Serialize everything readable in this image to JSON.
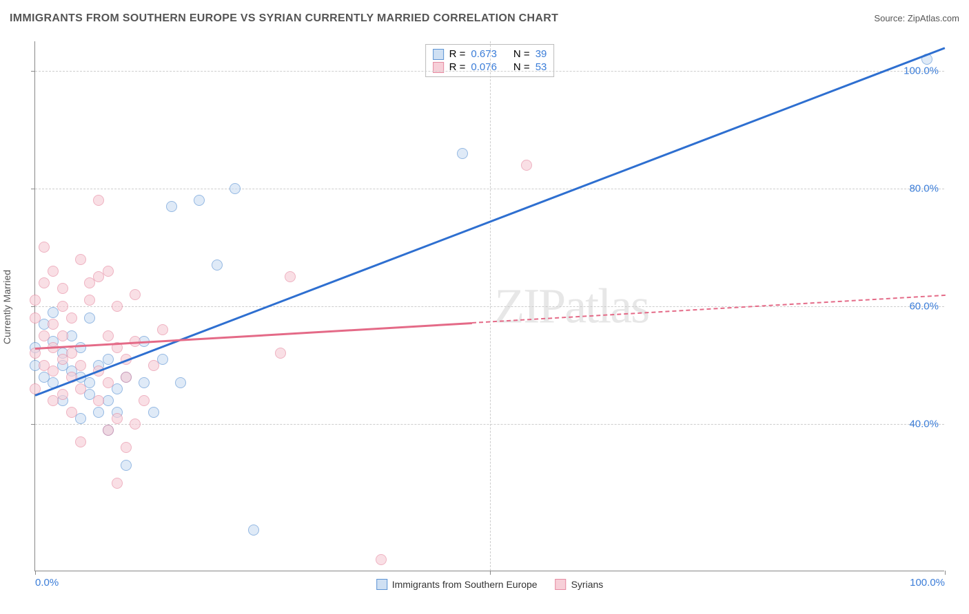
{
  "header": {
    "title": "IMMIGRANTS FROM SOUTHERN EUROPE VS SYRIAN CURRENTLY MARRIED CORRELATION CHART",
    "source_label": "Source:",
    "source_value": "ZipAtlas.com"
  },
  "watermark": "ZIPatlas",
  "chart": {
    "type": "scatter",
    "y_axis_title": "Currently Married",
    "background_color": "#ffffff",
    "grid_color": "#cccccc",
    "axis_color": "#888888",
    "tick_label_color": "#3b7dd8",
    "xlim": [
      0,
      100
    ],
    "ylim": [
      15,
      105
    ],
    "x_ticks": [
      {
        "v": 0,
        "label": "0.0%"
      },
      {
        "v": 50,
        "label": ""
      },
      {
        "v": 100,
        "label": "100.0%"
      }
    ],
    "y_ticks": [
      {
        "v": 40,
        "label": "40.0%"
      },
      {
        "v": 60,
        "label": "60.0%"
      },
      {
        "v": 80,
        "label": "80.0%"
      },
      {
        "v": 100,
        "label": "100.0%"
      }
    ],
    "marker_radius": 8,
    "marker_border_width": 1,
    "series": [
      {
        "id": "se",
        "label": "Immigrants from Southern Europe",
        "fill": "#cfe0f3",
        "border": "#5b93d4",
        "fill_opacity": 0.65,
        "R": "0.673",
        "N": "39",
        "trend": {
          "x1": 0,
          "y1": 45,
          "x2": 100,
          "y2": 104,
          "solid_until_x": 100,
          "color": "#2e6fd0",
          "width": 2.5
        },
        "points": [
          [
            0,
            50
          ],
          [
            0,
            53
          ],
          [
            1,
            48
          ],
          [
            1,
            57
          ],
          [
            2,
            47
          ],
          [
            2,
            54
          ],
          [
            2,
            59
          ],
          [
            3,
            44
          ],
          [
            3,
            50
          ],
          [
            3,
            52
          ],
          [
            4,
            49
          ],
          [
            4,
            55
          ],
          [
            5,
            41
          ],
          [
            5,
            48
          ],
          [
            5,
            53
          ],
          [
            6,
            47
          ],
          [
            6,
            45
          ],
          [
            6,
            58
          ],
          [
            7,
            42
          ],
          [
            7,
            50
          ],
          [
            8,
            39
          ],
          [
            8,
            44
          ],
          [
            8,
            51
          ],
          [
            9,
            42
          ],
          [
            9,
            46
          ],
          [
            10,
            48
          ],
          [
            10,
            33
          ],
          [
            12,
            47
          ],
          [
            12,
            54
          ],
          [
            13,
            42
          ],
          [
            14,
            51
          ],
          [
            15,
            77
          ],
          [
            16,
            47
          ],
          [
            18,
            78
          ],
          [
            20,
            67
          ],
          [
            22,
            80
          ],
          [
            24,
            22
          ],
          [
            47,
            86
          ],
          [
            98,
            102
          ]
        ]
      },
      {
        "id": "sy",
        "label": "Syrians",
        "fill": "#f7cfd8",
        "border": "#e68aa1",
        "fill_opacity": 0.65,
        "R": "0.076",
        "N": "53",
        "trend": {
          "x1": 0,
          "y1": 53,
          "x2": 100,
          "y2": 62,
          "solid_until_x": 48,
          "color": "#e46a87",
          "width": 2.5
        },
        "points": [
          [
            0,
            46
          ],
          [
            0,
            52
          ],
          [
            0,
            58
          ],
          [
            0,
            61
          ],
          [
            1,
            50
          ],
          [
            1,
            55
          ],
          [
            1,
            64
          ],
          [
            1,
            70
          ],
          [
            2,
            44
          ],
          [
            2,
            49
          ],
          [
            2,
            53
          ],
          [
            2,
            57
          ],
          [
            2,
            66
          ],
          [
            3,
            45
          ],
          [
            3,
            51
          ],
          [
            3,
            55
          ],
          [
            3,
            60
          ],
          [
            3,
            63
          ],
          [
            4,
            42
          ],
          [
            4,
            48
          ],
          [
            4,
            52
          ],
          [
            4,
            58
          ],
          [
            5,
            37
          ],
          [
            5,
            46
          ],
          [
            5,
            50
          ],
          [
            5,
            68
          ],
          [
            6,
            61
          ],
          [
            6,
            64
          ],
          [
            7,
            44
          ],
          [
            7,
            49
          ],
          [
            7,
            65
          ],
          [
            7,
            78
          ],
          [
            8,
            39
          ],
          [
            8,
            47
          ],
          [
            8,
            55
          ],
          [
            8,
            66
          ],
          [
            9,
            30
          ],
          [
            9,
            41
          ],
          [
            9,
            53
          ],
          [
            9,
            60
          ],
          [
            10,
            36
          ],
          [
            10,
            48
          ],
          [
            10,
            51
          ],
          [
            11,
            40
          ],
          [
            11,
            54
          ],
          [
            11,
            62
          ],
          [
            12,
            44
          ],
          [
            13,
            50
          ],
          [
            14,
            56
          ],
          [
            27,
            52
          ],
          [
            28,
            65
          ],
          [
            38,
            17
          ],
          [
            54,
            84
          ]
        ]
      }
    ],
    "stats_box": {
      "R_label": "R =",
      "N_label": "N ="
    },
    "legend_labels": {
      "se": "Immigrants from Southern Europe",
      "sy": "Syrians"
    }
  }
}
